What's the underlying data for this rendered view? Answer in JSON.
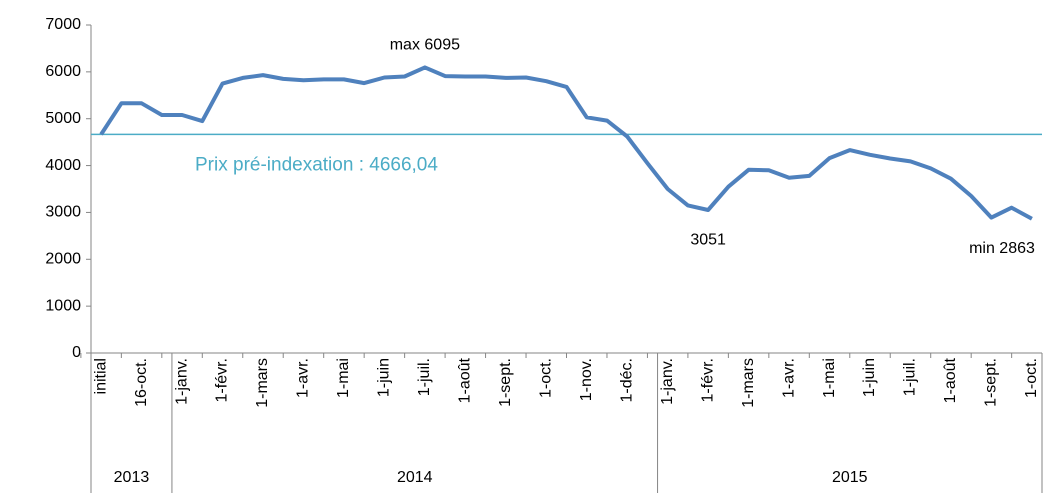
{
  "chart_data": {
    "type": "line",
    "categories": [
      "initial",
      null,
      "16-oct.",
      null,
      "1-janv.",
      null,
      "1-févr.",
      null,
      "1-mars",
      null,
      "1-avr.",
      null,
      "1-mai",
      null,
      "1-juin",
      null,
      "1-juil.",
      null,
      "1-août",
      null,
      "1-sept.",
      null,
      "1-oct.",
      null,
      "1-nov.",
      null,
      "1-déc.",
      null,
      "1-janv.",
      null,
      "1-févr.",
      null,
      "1-mars",
      null,
      "1-avr.",
      null,
      "1-mai",
      null,
      "1-juin",
      null,
      "1-juil.",
      null,
      "1-août",
      null,
      "1-sept.",
      null,
      "1-oct."
    ],
    "category_groups": [
      {
        "name": "2013",
        "count": 4
      },
      {
        "name": "2014",
        "count": 24
      },
      {
        "name": "2015",
        "count": 19
      }
    ],
    "series": [
      {
        "name": null,
        "color": "#4f81bd",
        "values": [
          4666,
          5330,
          5330,
          5080,
          5080,
          4950,
          5750,
          5870,
          5930,
          5850,
          5820,
          5840,
          5840,
          5760,
          5880,
          5900,
          6095,
          5910,
          5900,
          5900,
          5870,
          5880,
          5800,
          5680,
          5030,
          4960,
          4620,
          4050,
          3500,
          3150,
          3051,
          3550,
          3910,
          3900,
          3740,
          3780,
          4160,
          4330,
          4230,
          4150,
          4090,
          3940,
          3720,
          3350,
          2890,
          3100,
          2863
        ],
        "value_labels": [
          null,
          null,
          null,
          null,
          null,
          null,
          null,
          null,
          null,
          null,
          null,
          null,
          null,
          null,
          null,
          null,
          "max 6095",
          null,
          null,
          null,
          null,
          null,
          null,
          null,
          null,
          null,
          null,
          null,
          null,
          null,
          "3051",
          null,
          null,
          null,
          null,
          null,
          null,
          null,
          null,
          null,
          null,
          null,
          null,
          null,
          null,
          null,
          "min 2863"
        ]
      }
    ],
    "reference_line": {
      "value": 4666.04,
      "label": "Prix pré-indexation : 4666,04",
      "color": "#4bacc6"
    },
    "ylim": [
      0,
      7000
    ],
    "yticks": [
      0,
      1000,
      2000,
      3000,
      4000,
      5000,
      6000,
      7000
    ],
    "grid": false
  }
}
